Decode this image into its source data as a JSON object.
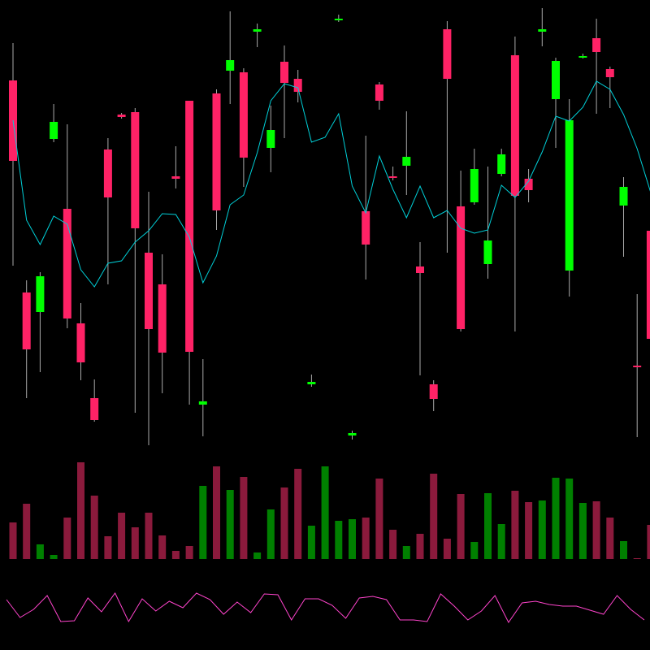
{
  "chart_data": [
    {
      "type": "candlestick",
      "up_color": "#00ff00",
      "down_color": "#ff2266",
      "wick_color": "#aaaaaa",
      "ylim": [
        0,
        560
      ],
      "open": [
        461,
        200,
        176,
        389,
        303,
        162,
        70,
        376,
        419,
        422,
        249,
        210,
        343,
        436,
        62,
        445,
        473,
        471,
        521,
        378,
        484,
        463,
        87,
        null,
        535,
        24,
        300,
        456,
        343,
        356,
        232,
        87,
        524,
        306,
        311,
        235,
        346,
        492,
        340,
        521,
        438,
        227,
        489,
        513,
        475,
        307,
        110,
        276
      ],
      "high": [
        507,
        215,
        225,
        432,
        407,
        187,
        93,
        390,
        421,
        427,
        324,
        247,
        380,
        436,
        118,
        450,
        546,
        476,
        531,
        430,
        504,
        474,
        99,
        null,
        542,
        30,
        393,
        459,
        355,
        423,
        262,
        92,
        534,
        350,
        377,
        355,
        377,
        515,
        352,
        550,
        489,
        438,
        494,
        537,
        478,
        342,
        198,
        304
      ],
      "low": [
        233,
        70,
        102,
        385,
        156,
        92,
        41,
        210,
        414,
        52,
        12,
        76,
        328,
        62,
        23,
        277,
        432,
        330,
        502,
        348,
        390,
        434,
        84,
        null,
        533,
        19,
        216,
        425,
        338,
        320,
        98,
        54,
        249,
        152,
        308,
        217,
        343,
        152,
        311,
        503,
        378,
        195,
        488,
        420,
        427,
        244,
        22,
        130
      ],
      "close": [
        362,
        130,
        220,
        410,
        168,
        114,
        43,
        317,
        416,
        279,
        155,
        126,
        340,
        127,
        66,
        301,
        486,
        366,
        524,
        400,
        458,
        447,
        90,
        null,
        537,
        27,
        259,
        436,
        341,
        367,
        224,
        69,
        463,
        155,
        352,
        264,
        370,
        319,
        326,
        524,
        485,
        412,
        491,
        496,
        465,
        330,
        109,
        143
      ]
    },
    {
      "type": "line",
      "color": "#00d0d8",
      "ylim": [
        0,
        560
      ],
      "values": [
        412,
        289,
        259,
        294,
        284,
        228,
        207,
        236,
        239,
        262,
        276,
        297,
        296,
        268,
        212,
        245,
        308,
        320,
        372,
        436,
        457,
        452,
        385,
        391,
        420,
        331,
        298,
        368,
        327,
        292,
        331,
        292,
        301,
        279,
        273,
        277,
        332,
        317,
        337,
        373,
        417,
        411,
        428,
        460,
        450,
        419,
        377,
        323
      ]
    },
    {
      "type": "bar",
      "ylim": [
        0,
        120
      ],
      "values": [
        45,
        68,
        18,
        5,
        51,
        119,
        78,
        28,
        57,
        39,
        57,
        29,
        10,
        16,
        90,
        114,
        85,
        101,
        8,
        61,
        88,
        111,
        41,
        114,
        47,
        49,
        51,
        99,
        36,
        16,
        31,
        105,
        25,
        80,
        21,
        81,
        43,
        84,
        70,
        72,
        100,
        99,
        69,
        71,
        51,
        22,
        1,
        42
      ],
      "colors": [
        "#8b1a3c",
        "#8b1a3c",
        "#008000",
        "#008000",
        "#8b1a3c",
        "#8b1a3c",
        "#8b1a3c",
        "#8b1a3c",
        "#8b1a3c",
        "#8b1a3c",
        "#8b1a3c",
        "#8b1a3c",
        "#8b1a3c",
        "#8b1a3c",
        "#008000",
        "#8b1a3c",
        "#008000",
        "#8b1a3c",
        "#008000",
        "#008000",
        "#8b1a3c",
        "#8b1a3c",
        "#008000",
        "#008000",
        "#008000",
        "#008000",
        "#8b1a3c",
        "#8b1a3c",
        "#8b1a3c",
        "#008000",
        "#8b1a3c",
        "#8b1a3c",
        "#8b1a3c",
        "#8b1a3c",
        "#008000",
        "#008000",
        "#008000",
        "#8b1a3c",
        "#8b1a3c",
        "#008000",
        "#008000",
        "#008000",
        "#008000",
        "#8b1a3c",
        "#8b1a3c",
        "#008000",
        "#8b1a3c",
        "#8b1a3c"
      ]
    },
    {
      "type": "line",
      "color": "#ff44cc",
      "ylim": [
        0,
        80
      ],
      "values": [
        42,
        20,
        30,
        47,
        15,
        16,
        44,
        27,
        50,
        15,
        43,
        28,
        40,
        32,
        50,
        42,
        24,
        39,
        26,
        49,
        48,
        17,
        43,
        43,
        35,
        19,
        44,
        46,
        42,
        17,
        17,
        15,
        49,
        34,
        17,
        28,
        47,
        14,
        38,
        40,
        36,
        34,
        34,
        29,
        24,
        47,
        30,
        17
      ]
    }
  ]
}
